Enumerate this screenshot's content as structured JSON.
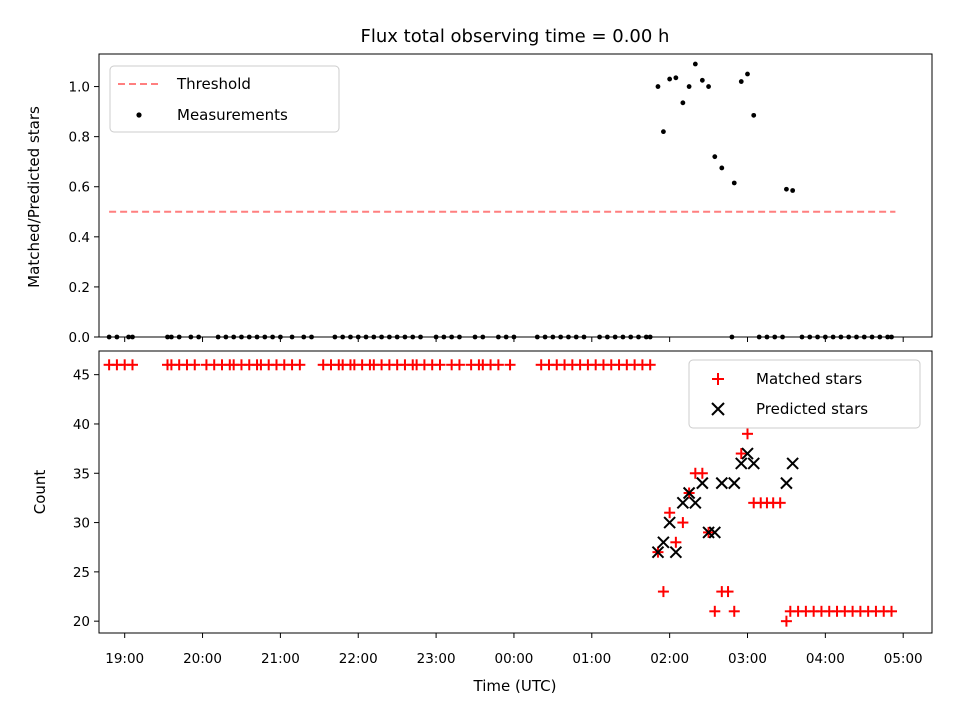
{
  "chart_data": [
    {
      "type": "scatter",
      "title": "Flux total observing time = 0.00 h",
      "xlabel": "",
      "ylabel": "Matched/Predicted stars",
      "xlim": [
        -5.33,
        5.37
      ],
      "ylim": [
        0.0,
        1.13
      ],
      "yticks": [
        "0.0",
        "0.2",
        "0.4",
        "0.6",
        "0.8",
        "1.0"
      ],
      "ytick_values": [
        0.0,
        0.2,
        0.4,
        0.6,
        0.8,
        1.0
      ],
      "xtick_values": [
        -5,
        -4,
        -3,
        -2,
        -1,
        0,
        1,
        2,
        3,
        4,
        5
      ],
      "legend": {
        "location": "upper-left",
        "threshold_label": "Threshold",
        "measurements_label": "Measurements"
      },
      "threshold": {
        "value": 0.5,
        "x_start": -5.2,
        "x_end": 4.9,
        "color": "#ff7f7f"
      },
      "measurements": {
        "color": "#000000",
        "zero_x": [
          -5.2,
          -5.1,
          -4.95,
          -4.9,
          -4.45,
          -4.4,
          -4.3,
          -4.15,
          -4.05,
          -3.8,
          -3.7,
          -3.6,
          -3.5,
          -3.4,
          -3.3,
          -3.2,
          -3.1,
          -3.0,
          -2.85,
          -2.7,
          -2.6,
          -2.3,
          -2.2,
          -2.1,
          -2.0,
          -1.9,
          -1.8,
          -1.7,
          -1.6,
          -1.5,
          -1.4,
          -1.3,
          -1.2,
          -1.0,
          -0.9,
          -0.8,
          -0.7,
          -0.5,
          -0.4,
          -0.2,
          -0.1,
          0.0,
          0.3,
          0.4,
          0.5,
          0.6,
          0.7,
          0.8,
          0.9,
          1.1,
          1.2,
          1.3,
          1.4,
          1.5,
          1.6,
          1.7,
          1.75,
          2.8,
          3.15,
          3.25,
          3.35,
          3.45,
          3.7,
          3.8,
          3.9,
          4.0,
          4.1,
          4.2,
          4.3,
          4.4,
          4.5,
          4.6,
          4.7,
          4.8,
          4.85
        ],
        "points": [
          {
            "x": 1.85,
            "y": 1.0
          },
          {
            "x": 1.92,
            "y": 0.82
          },
          {
            "x": 2.0,
            "y": 1.03
          },
          {
            "x": 2.08,
            "y": 1.035
          },
          {
            "x": 2.17,
            "y": 0.935
          },
          {
            "x": 2.25,
            "y": 1.0
          },
          {
            "x": 2.33,
            "y": 1.09
          },
          {
            "x": 2.42,
            "y": 1.025
          },
          {
            "x": 2.5,
            "y": 1.0
          },
          {
            "x": 2.58,
            "y": 0.72
          },
          {
            "x": 2.67,
            "y": 0.675
          },
          {
            "x": 2.83,
            "y": 0.615
          },
          {
            "x": 2.92,
            "y": 1.02
          },
          {
            "x": 3.0,
            "y": 1.05
          },
          {
            "x": 3.08,
            "y": 0.885
          },
          {
            "x": 3.5,
            "y": 0.59
          },
          {
            "x": 3.58,
            "y": 0.585
          }
        ]
      }
    },
    {
      "type": "scatter",
      "title": "",
      "xlabel": "Time (UTC)",
      "ylabel": "Count",
      "xlim": [
        -5.33,
        5.37
      ],
      "ylim": [
        18.8,
        47.4
      ],
      "yticks": [
        "20",
        "25",
        "30",
        "35",
        "40",
        "45"
      ],
      "ytick_values": [
        20,
        25,
        30,
        35,
        40,
        45
      ],
      "xtick_values": [
        -5,
        -4,
        -3,
        -2,
        -1,
        0,
        1,
        2,
        3,
        4,
        5
      ],
      "xticks": [
        "19:00",
        "20:00",
        "21:00",
        "22:00",
        "23:00",
        "00:00",
        "01:00",
        "02:00",
        "03:00",
        "04:00",
        "05:00"
      ],
      "legend": {
        "location": "upper-right",
        "matched_label": "Matched stars",
        "predicted_label": "Predicted stars"
      },
      "matched": {
        "color": "#ff0000",
        "at_46_x": [
          -5.2,
          -5.1,
          -5.0,
          -4.9,
          -4.45,
          -4.4,
          -4.3,
          -4.2,
          -4.1,
          -3.95,
          -3.85,
          -3.75,
          -3.65,
          -3.6,
          -3.5,
          -3.4,
          -3.3,
          -3.25,
          -3.15,
          -3.05,
          -2.95,
          -2.85,
          -2.75,
          -2.45,
          -2.35,
          -2.25,
          -2.2,
          -2.1,
          -2.05,
          -1.95,
          -1.85,
          -1.8,
          -1.7,
          -1.6,
          -1.5,
          -1.4,
          -1.3,
          -1.25,
          -1.15,
          -1.05,
          -0.95,
          -0.8,
          -0.7,
          -0.55,
          -0.45,
          -0.4,
          -0.3,
          -0.2,
          -0.05,
          0.35,
          0.45,
          0.55,
          0.65,
          0.75,
          0.85,
          0.95,
          1.05,
          1.15,
          1.25,
          1.35,
          1.45,
          1.55,
          1.65,
          1.75
        ],
        "at_21_x": [
          3.55,
          3.65,
          3.75,
          3.85,
          3.95,
          4.05,
          4.15,
          4.25,
          4.35,
          4.45,
          4.55,
          4.65,
          4.75,
          4.85
        ],
        "points": [
          {
            "x": 1.85,
            "y": 27
          },
          {
            "x": 1.92,
            "y": 23
          },
          {
            "x": 2.0,
            "y": 31
          },
          {
            "x": 2.08,
            "y": 28
          },
          {
            "x": 2.17,
            "y": 30
          },
          {
            "x": 2.25,
            "y": 33
          },
          {
            "x": 2.33,
            "y": 35
          },
          {
            "x": 2.42,
            "y": 35
          },
          {
            "x": 2.5,
            "y": 29
          },
          {
            "x": 2.58,
            "y": 21
          },
          {
            "x": 2.67,
            "y": 23
          },
          {
            "x": 2.75,
            "y": 23
          },
          {
            "x": 2.83,
            "y": 21
          },
          {
            "x": 2.92,
            "y": 37
          },
          {
            "x": 3.0,
            "y": 39
          },
          {
            "x": 3.08,
            "y": 32
          },
          {
            "x": 3.17,
            "y": 32
          },
          {
            "x": 3.25,
            "y": 32
          },
          {
            "x": 3.33,
            "y": 32
          },
          {
            "x": 3.42,
            "y": 32
          },
          {
            "x": 3.5,
            "y": 20
          }
        ]
      },
      "predicted": {
        "color": "#000000",
        "points": [
          {
            "x": 1.85,
            "y": 27
          },
          {
            "x": 1.92,
            "y": 28
          },
          {
            "x": 2.0,
            "y": 30
          },
          {
            "x": 2.08,
            "y": 27
          },
          {
            "x": 2.17,
            "y": 32
          },
          {
            "x": 2.25,
            "y": 33
          },
          {
            "x": 2.33,
            "y": 32
          },
          {
            "x": 2.42,
            "y": 34
          },
          {
            "x": 2.5,
            "y": 29
          },
          {
            "x": 2.58,
            "y": 29
          },
          {
            "x": 2.67,
            "y": 34
          },
          {
            "x": 2.83,
            "y": 34
          },
          {
            "x": 2.92,
            "y": 36
          },
          {
            "x": 3.0,
            "y": 37
          },
          {
            "x": 3.08,
            "y": 36
          },
          {
            "x": 3.5,
            "y": 34
          },
          {
            "x": 3.58,
            "y": 36
          }
        ]
      }
    }
  ]
}
